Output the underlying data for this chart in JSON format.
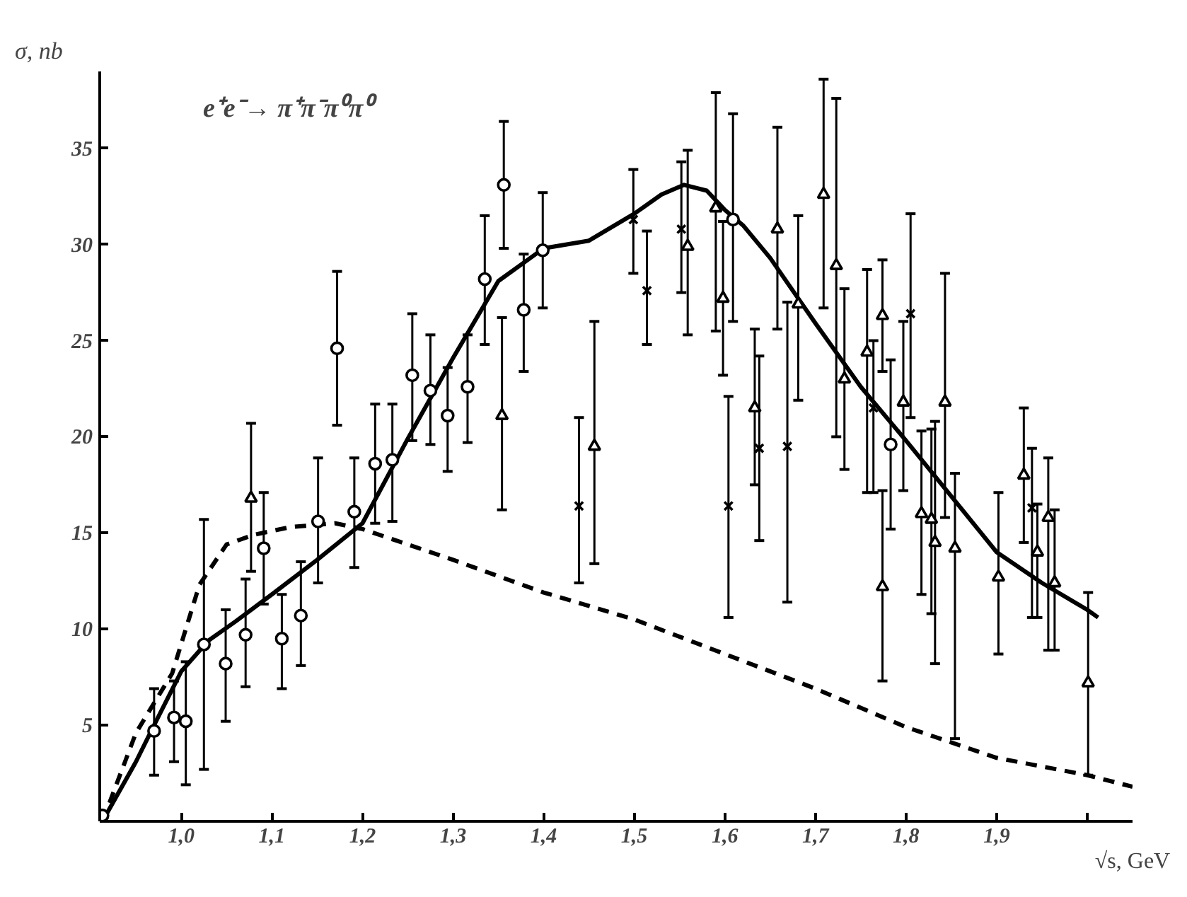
{
  "chart_data": {
    "type": "scatter",
    "xlabel": "√s, GeV",
    "ylabel": "σ, nb",
    "annotations": [
      "e⁺e⁻→ π⁺π⁻π⁰π⁰"
    ],
    "xlim": [
      0.91,
      2.05
    ],
    "ylim": [
      0,
      39
    ],
    "xticks": [
      {
        "value": 1.0,
        "label": "1,0"
      },
      {
        "value": 1.1,
        "label": "1,1"
      },
      {
        "value": 1.2,
        "label": "1,2"
      },
      {
        "value": 1.3,
        "label": "1,3"
      },
      {
        "value": 1.4,
        "label": "1,4"
      },
      {
        "value": 1.5,
        "label": "1,5"
      },
      {
        "value": 1.6,
        "label": "1,6"
      },
      {
        "value": 1.7,
        "label": "1,7"
      },
      {
        "value": 1.8,
        "label": "1,8"
      },
      {
        "value": 1.9,
        "label": "1,9"
      },
      {
        "value": 2.0,
        "label": null
      }
    ],
    "yticks": [
      5,
      10,
      15,
      20,
      25,
      30,
      35
    ],
    "grid": false,
    "series": [
      {
        "marker": "circle",
        "color": "#000000",
        "x": [
          0.913,
          0.97,
          0.992,
          1.005,
          1.025,
          1.049,
          1.071,
          1.091,
          1.111,
          1.132,
          1.151,
          1.172,
          1.191,
          1.214,
          1.233,
          1.255,
          1.275,
          1.294,
          1.316,
          1.335,
          1.356,
          1.378,
          1.399,
          1.609,
          1.783
        ],
        "values": [
          0.3,
          4.7,
          5.4,
          5.2,
          9.2,
          8.2,
          9.7,
          14.2,
          9.5,
          10.7,
          15.6,
          24.6,
          16.1,
          18.6,
          18.8,
          23.2,
          22.4,
          21.1,
          22.6,
          28.2,
          33.1,
          26.6,
          29.7,
          31.3,
          19.6
        ],
        "errors": [
          null,
          [
            2.4,
            6.9
          ],
          [
            3.1,
            7.3
          ],
          [
            1.9,
            8.3
          ],
          [
            2.7,
            15.7
          ],
          [
            5.2,
            11.0
          ],
          [
            7.0,
            12.6
          ],
          [
            11.3,
            17.1
          ],
          [
            6.9,
            11.8
          ],
          [
            8.1,
            13.5
          ],
          [
            12.4,
            18.9
          ],
          [
            20.6,
            28.6
          ],
          [
            13.2,
            18.9
          ],
          [
            15.5,
            21.7
          ],
          [
            15.6,
            21.7
          ],
          [
            19.8,
            26.4
          ],
          [
            19.6,
            25.3
          ],
          [
            18.2,
            23.6
          ],
          [
            19.7,
            25.3
          ],
          [
            24.8,
            31.5
          ],
          [
            29.8,
            36.4
          ],
          [
            23.4,
            29.5
          ],
          [
            26.7,
            32.7
          ],
          [
            26.0,
            36.8
          ],
          [
            15.2,
            24.0
          ]
        ]
      },
      {
        "marker": "cross",
        "color": "#000000",
        "x": [
          1.439,
          1.499,
          1.514,
          1.552,
          1.604,
          1.638,
          1.669,
          1.764,
          1.805,
          1.939
        ],
        "values": [
          16.4,
          31.3,
          27.6,
          30.8,
          16.4,
          19.4,
          19.5,
          21.5,
          26.4,
          16.3
        ],
        "errors": [
          [
            12.4,
            21.0
          ],
          [
            28.5,
            33.9
          ],
          [
            24.8,
            30.7
          ],
          [
            27.5,
            34.3
          ],
          [
            10.6,
            22.1
          ],
          [
            14.6,
            24.2
          ],
          [
            11.4,
            27.0
          ],
          [
            17.1,
            25.0
          ],
          [
            21.0,
            31.6
          ],
          [
            10.6,
            19.4
          ]
        ]
      },
      {
        "marker": "triangle",
        "color": "#000000",
        "x": [
          1.077,
          1.354,
          1.456,
          1.559,
          1.59,
          1.598,
          1.633,
          1.658,
          1.681,
          1.709,
          1.723,
          1.732,
          1.757,
          1.774,
          1.774,
          1.797,
          1.817,
          1.828,
          1.832,
          1.843,
          1.854,
          1.902,
          1.93,
          1.945,
          1.957,
          1.964,
          2.001
        ],
        "values": [
          16.8,
          21.1,
          19.5,
          29.9,
          31.9,
          27.2,
          21.5,
          30.8,
          26.9,
          32.6,
          28.9,
          23.0,
          24.4,
          26.3,
          12.2,
          21.8,
          16.0,
          15.7,
          14.5,
          21.8,
          14.2,
          12.7,
          18.0,
          14.0,
          15.8,
          12.4,
          7.2
        ],
        "errors": [
          [
            13.0,
            20.7
          ],
          [
            16.2,
            26.2
          ],
          [
            13.4,
            26.0
          ],
          [
            25.3,
            34.9
          ],
          [
            25.5,
            37.9
          ],
          [
            23.2,
            31.2
          ],
          [
            17.5,
            25.6
          ],
          [
            25.6,
            36.1
          ],
          [
            21.9,
            31.5
          ],
          [
            26.7,
            38.6
          ],
          [
            20.0,
            37.6
          ],
          [
            18.3,
            27.7
          ],
          [
            17.1,
            28.7
          ],
          [
            23.4,
            29.2
          ],
          [
            7.3,
            17.2
          ],
          [
            17.2,
            26.0
          ],
          [
            11.8,
            20.3
          ],
          [
            10.8,
            20.4
          ],
          [
            8.2,
            20.8
          ],
          [
            15.8,
            28.5
          ],
          [
            4.3,
            18.1
          ],
          [
            8.7,
            17.1
          ],
          [
            14.5,
            21.5
          ],
          [
            10.6,
            16.5
          ],
          [
            8.9,
            18.9
          ],
          [
            8.9,
            16.2
          ],
          [
            2.4,
            11.9
          ]
        ]
      },
      {
        "type": "line",
        "line_style": "solid",
        "color": "#000000",
        "x": [
          0.913,
          0.95,
          0.97,
          1.0,
          1.03,
          1.06,
          1.1,
          1.15,
          1.2,
          1.25,
          1.3,
          1.35,
          1.4,
          1.45,
          1.5,
          1.53,
          1.555,
          1.58,
          1.6,
          1.62,
          1.65,
          1.7,
          1.75,
          1.8,
          1.85,
          1.9,
          1.95,
          2.0,
          2.012
        ],
        "values": [
          0,
          3.1,
          5.0,
          7.8,
          9.4,
          10.4,
          11.8,
          13.6,
          15.5,
          19.9,
          24.1,
          28.1,
          29.8,
          30.2,
          31.6,
          32.6,
          33.1,
          32.8,
          31.8,
          31.0,
          29.3,
          25.9,
          22.6,
          19.8,
          16.9,
          14.0,
          12.4,
          11.0,
          10.6
        ]
      },
      {
        "type": "line",
        "line_style": "dashed",
        "color": "#000000",
        "x": [
          0.913,
          0.95,
          0.99,
          1.02,
          1.05,
          1.08,
          1.12,
          1.17,
          1.2,
          1.3,
          1.4,
          1.5,
          1.6,
          1.7,
          1.8,
          1.9,
          2.0,
          2.05
        ],
        "values": [
          0,
          4.6,
          7.7,
          12.3,
          14.4,
          14.9,
          15.3,
          15.5,
          15.2,
          13.6,
          11.9,
          10.5,
          8.7,
          6.9,
          4.9,
          3.3,
          2.4,
          1.8
        ]
      }
    ]
  }
}
